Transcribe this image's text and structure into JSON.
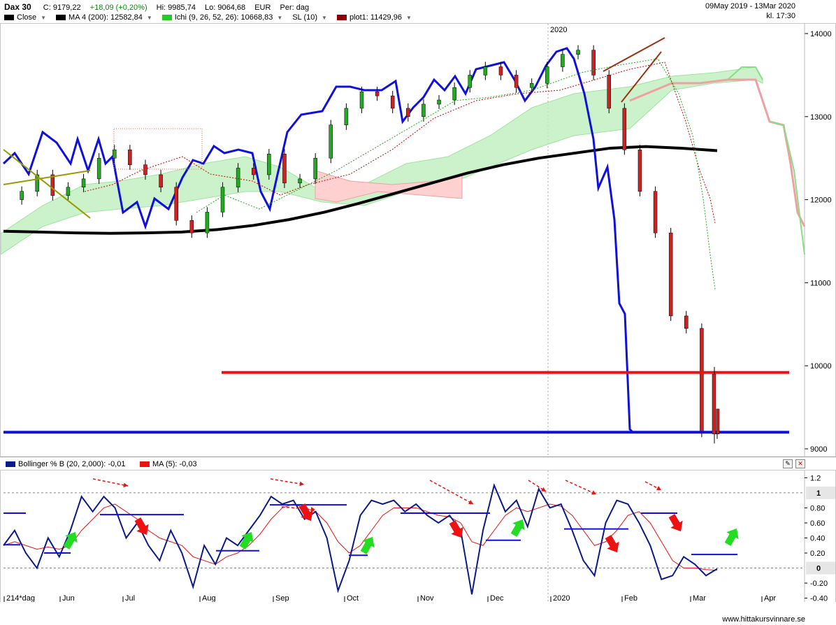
{
  "header": {
    "symbol": "Dax 30",
    "close": "C: 9179,22",
    "change": "+18,09 (+0,20%)",
    "high": "Hi: 9985,74",
    "low": "Lo: 9064,68",
    "currency": "EUR",
    "period": "Per: dag",
    "date_range": "09May 2019 - 13Mar 2020",
    "time": "kl. 17:30"
  },
  "legend": [
    {
      "label": "Close",
      "color": "#000000",
      "dropdown": true
    },
    {
      "label": "MA 4 (200): 12582,84",
      "color": "#000000",
      "dropdown": true
    },
    {
      "label": "Ichi (9, 26, 52, 26): 10668,83",
      "color": "#22cc22",
      "dropdown": true
    },
    {
      "label": "SL (10)",
      "color": "",
      "dropdown": true
    },
    {
      "label": "plot1: 11429,96",
      "color": "#8b0000",
      "dropdown": true
    }
  ],
  "osc_legend": [
    {
      "label": "Bollinger % B (20, 2,000): -0,01",
      "color": "#0a1a8a"
    },
    {
      "label": "MA (5): -0,03",
      "color": "#ee1111"
    }
  ],
  "osc_tools": {
    "settings": "settings-icon",
    "close": "close-icon"
  },
  "watermark": "www.hittakursvinnare.se",
  "colors": {
    "up": "#22aa22",
    "down": "#cc2222",
    "ma200": "#000000",
    "blue_line": "#1010dd",
    "cloud_green": "#bff0bf",
    "cloud_red": "#ffd0d0",
    "support": "#1010dd",
    "resistance": "#ee1111"
  },
  "chart_data": [
    {
      "type": "line",
      "panel": "price",
      "y_ticks": [
        "14000",
        "13000",
        "12000",
        "11000",
        "10000",
        "9000"
      ],
      "ylim": [
        9000,
        14000
      ],
      "year_label": "2020",
      "months": [
        "Jun",
        "Jul",
        "Aug",
        "Sep",
        "Oct",
        "Nov",
        "Dec",
        "2020",
        "Feb",
        "Mar",
        "Apr"
      ],
      "support_level": 9200,
      "resistance_level": 9920,
      "close_last": 9179.22,
      "high_last": 9985.74,
      "low_last": 9064.68,
      "ma200_last": 12582.84,
      "ichimoku_last": 10668.83,
      "plot1_last": 11429.96,
      "ma200": [
        11620,
        11610,
        11600,
        11595,
        11600,
        11610,
        11640,
        11690,
        11760,
        11850,
        11960,
        12080,
        12200,
        12320,
        12420,
        12500,
        12560,
        12620,
        12640,
        12620,
        12590
      ],
      "close_series": [
        12000,
        12100,
        12300,
        12050,
        12150,
        12250,
        12500,
        12600,
        12420,
        12300,
        12150,
        11750,
        11600,
        11850,
        12150,
        12380,
        12300,
        12550,
        12200,
        12250,
        12500,
        12900,
        13100,
        13300,
        13250,
        13100,
        13000,
        13150,
        13200,
        13350,
        13500,
        13600,
        13500,
        13350,
        13400,
        13600,
        13750,
        13800,
        13500,
        13100,
        12600,
        12100,
        11600,
        10600,
        10450,
        9200,
        9180
      ]
    },
    {
      "type": "line",
      "panel": "oscillator",
      "y_ticks": [
        "1.2",
        "1",
        "0.80",
        "0.60",
        "0.40",
        "0.20",
        "0",
        "-0.20",
        "-0.40"
      ],
      "ylim": [
        -0.45,
        1.25
      ],
      "months": [
        "214*dag",
        "Jun",
        "Jul",
        "Aug",
        "Sep",
        "Oct",
        "Nov",
        "Dec",
        "2020",
        "Feb",
        "Mar",
        "Apr"
      ],
      "last_value": -0.01,
      "ma5_last": -0.03,
      "percent_b": [
        0.3,
        0.5,
        0.2,
        0.0,
        0.4,
        0.15,
        0.5,
        0.95,
        0.75,
        0.95,
        0.8,
        0.4,
        0.6,
        0.3,
        0.1,
        0.5,
        0.2,
        -0.25,
        0.3,
        0.05,
        0.4,
        0.3,
        0.5,
        0.7,
        0.95,
        0.85,
        0.9,
        0.65,
        0.75,
        0.4,
        -0.3,
        0.1,
        0.7,
        0.9,
        0.85,
        0.9,
        0.75,
        0.85,
        0.7,
        0.6,
        0.7,
        0.5,
        -0.35,
        0.5,
        1.1,
        0.75,
        0.9,
        0.55,
        1.05,
        0.8,
        0.85,
        0.5,
        0.1,
        -0.1,
        0.6,
        0.9,
        0.85,
        0.6,
        0.3,
        -0.15,
        -0.1,
        0.15,
        0.05,
        -0.1,
        -0.01
      ],
      "ma5": [
        0.3,
        0.35,
        0.3,
        0.25,
        0.28,
        0.25,
        0.3,
        0.5,
        0.65,
        0.8,
        0.85,
        0.75,
        0.65,
        0.5,
        0.4,
        0.35,
        0.3,
        0.15,
        0.1,
        0.05,
        0.15,
        0.2,
        0.3,
        0.45,
        0.65,
        0.8,
        0.85,
        0.8,
        0.75,
        0.6,
        0.35,
        0.2,
        0.3,
        0.5,
        0.7,
        0.8,
        0.8,
        0.8,
        0.75,
        0.7,
        0.68,
        0.6,
        0.35,
        0.3,
        0.5,
        0.7,
        0.8,
        0.75,
        0.8,
        0.85,
        0.82,
        0.7,
        0.5,
        0.3,
        0.35,
        0.5,
        0.7,
        0.75,
        0.6,
        0.35,
        0.1,
        0.0,
        0.0,
        -0.02,
        -0.03
      ],
      "levels": [
        {
          "label": "1",
          "value": 1.0
        },
        {
          "label": "0",
          "value": 0.0
        }
      ]
    }
  ]
}
